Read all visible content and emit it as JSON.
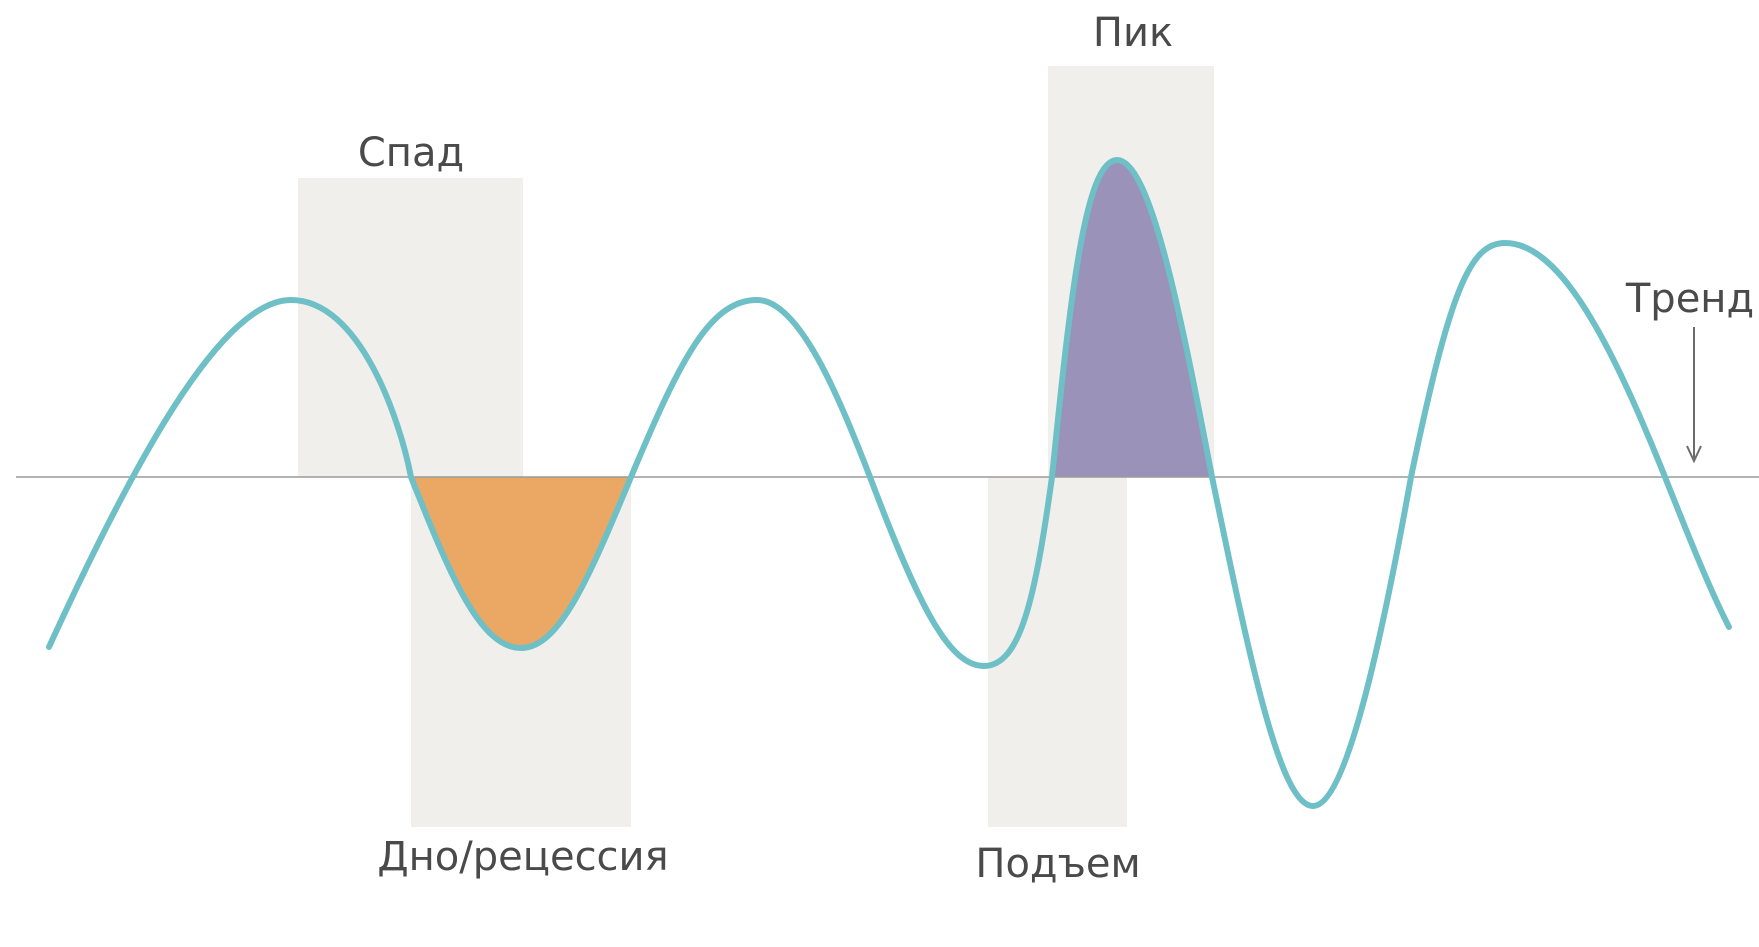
{
  "labels": {
    "spad": "Спад",
    "pik": "Пик",
    "trend": "Тренд",
    "dno": "Дно/рецессия",
    "podem": "Подъем"
  },
  "colors": {
    "curve": "#6fc0c6",
    "trend_line": "#9a9a9a",
    "phase_band": "#f0efec",
    "trough_fill": "#eaa864",
    "peak_fill": "#9a92b8",
    "label_text": "#4a4a4a"
  }
}
